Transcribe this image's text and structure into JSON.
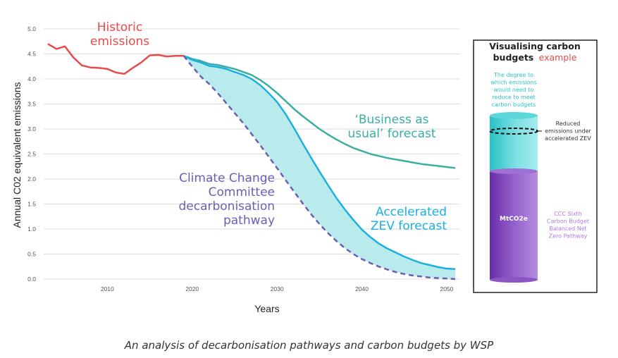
{
  "chart_data": {
    "type": "line",
    "xlabel": "Years",
    "ylabel": "Annual C02 equivalent emissions",
    "xlim": [
      2002.5,
      2051.5
    ],
    "ylim": [
      0,
      5.0
    ],
    "x_ticks": [
      2010,
      2020,
      2030,
      2040,
      2050
    ],
    "y_ticks": [
      0.0,
      0.5,
      1.0,
      1.5,
      2.0,
      2.5,
      3.0,
      3.5,
      4.0,
      4.5,
      5.0
    ],
    "grid": "horizontal",
    "series": [
      {
        "name": "Historic emissions",
        "color": "#e84a4a",
        "style": "solid",
        "x": [
          2003,
          2004,
          2005,
          2006,
          2007,
          2008,
          2009,
          2010,
          2011,
          2012,
          2013,
          2014,
          2015,
          2016,
          2017,
          2018,
          2019
        ],
        "y": [
          4.7,
          4.6,
          4.65,
          4.43,
          4.27,
          4.23,
          4.22,
          4.2,
          4.13,
          4.1,
          4.22,
          4.33,
          4.47,
          4.48,
          4.45,
          4.46,
          4.46
        ]
      },
      {
        "name": "'Business as usual' forecast",
        "color": "#3aaea0",
        "style": "solid",
        "x": [
          2019,
          2020,
          2021,
          2022,
          2023,
          2024,
          2025,
          2026,
          2027,
          2028,
          2029,
          2030,
          2031,
          2032,
          2033,
          2034,
          2035,
          2036,
          2037,
          2038,
          2039,
          2040,
          2041,
          2042,
          2043,
          2044,
          2045,
          2046,
          2047,
          2048,
          2049,
          2050,
          2051
        ],
        "y": [
          4.46,
          4.4,
          4.36,
          4.3,
          4.28,
          4.24,
          4.2,
          4.14,
          4.08,
          3.98,
          3.86,
          3.72,
          3.56,
          3.4,
          3.26,
          3.13,
          3.0,
          2.89,
          2.79,
          2.7,
          2.62,
          2.56,
          2.5,
          2.46,
          2.42,
          2.39,
          2.36,
          2.33,
          2.3,
          2.28,
          2.26,
          2.24,
          2.22
        ]
      },
      {
        "name": "Accelerated ZEV forecast",
        "color": "#1ab0e0",
        "style": "solid",
        "x": [
          2019,
          2020,
          2021,
          2022,
          2023,
          2024,
          2025,
          2026,
          2027,
          2028,
          2029,
          2030,
          2031,
          2032,
          2033,
          2034,
          2035,
          2036,
          2037,
          2038,
          2039,
          2040,
          2041,
          2042,
          2043,
          2044,
          2045,
          2046,
          2047,
          2048,
          2049,
          2050,
          2051
        ],
        "y": [
          4.46,
          4.38,
          4.33,
          4.26,
          4.24,
          4.2,
          4.14,
          4.08,
          4.0,
          3.88,
          3.72,
          3.54,
          3.3,
          3.02,
          2.72,
          2.43,
          2.15,
          1.88,
          1.62,
          1.39,
          1.18,
          0.99,
          0.84,
          0.71,
          0.61,
          0.53,
          0.45,
          0.38,
          0.32,
          0.28,
          0.24,
          0.21,
          0.2
        ]
      },
      {
        "name": "Climate Change Committee decarbonisation pathway",
        "color": "#6b5fb5",
        "style": "dashed",
        "x": [
          2019,
          2020,
          2021,
          2022,
          2023,
          2024,
          2025,
          2026,
          2027,
          2028,
          2029,
          2030,
          2031,
          2032,
          2033,
          2034,
          2035,
          2036,
          2037,
          2038,
          2039,
          2040,
          2041,
          2042,
          2043,
          2044,
          2045,
          2046,
          2047,
          2048,
          2049,
          2050,
          2051
        ],
        "y": [
          4.46,
          4.25,
          4.05,
          3.9,
          3.72,
          3.52,
          3.32,
          3.12,
          2.9,
          2.68,
          2.45,
          2.22,
          1.98,
          1.75,
          1.52,
          1.3,
          1.1,
          0.92,
          0.76,
          0.62,
          0.5,
          0.4,
          0.32,
          0.25,
          0.19,
          0.14,
          0.1,
          0.07,
          0.05,
          0.03,
          0.02,
          0.01,
          0.0
        ]
      }
    ],
    "fill_between": {
      "upper": "Accelerated ZEV forecast",
      "lower": "Climate Change Committee decarbonisation pathway",
      "color": "#b9eaec"
    },
    "annotations": [
      {
        "id": "historic",
        "lines": [
          "Historic",
          "emissions"
        ],
        "color": "#e84a4a"
      },
      {
        "id": "bau",
        "lines": [
          "‘Business as",
          "usual’ forecast"
        ],
        "color": "#3aaea0"
      },
      {
        "id": "ccc",
        "lines": [
          "Climate Change",
          "Committee",
          "decarbonisation",
          "pathway"
        ],
        "color": "#6b5fb5"
      },
      {
        "id": "zev",
        "lines": [
          "Accelerated",
          "ZEV forecast"
        ],
        "color": "#1ab0e0"
      }
    ]
  },
  "inset": {
    "title_line1": "Visualising carbon",
    "title_line2": "budgets",
    "title_accent": "example",
    "accent_color": "#e84a4a",
    "teal_note": [
      "The degree to",
      "which emissions",
      "would need to",
      "reduce to meet",
      "carbon budgets"
    ],
    "teal_color": "#2cc3c8",
    "reduced_note": [
      "Reduced",
      "emissions under",
      "accelerated ZEV"
    ],
    "cylinder_label": "MtCO2e",
    "purple_note": [
      "CCC Sixth",
      "Carbon Budget",
      "Balanced Net",
      "Zero Pathway"
    ],
    "purple_color": "#7b3fb8",
    "purple_note_color": "#b07be0"
  },
  "caption": "An analysis of decarbonisation pathways and carbon budgets by WSP"
}
